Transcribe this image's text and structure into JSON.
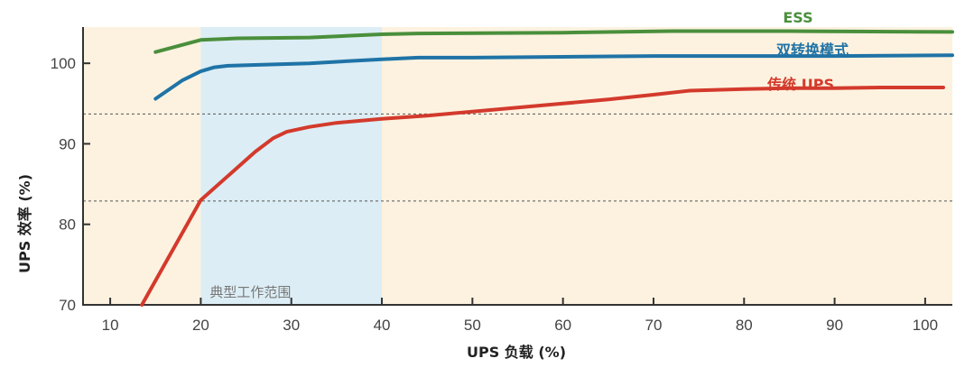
{
  "chart_data": {
    "type": "line",
    "xlabel": "UPS 负载 (%)",
    "ylabel": "UPS 效率 (%)",
    "xlim": [
      7,
      103
    ],
    "ylim": [
      70,
      104.5
    ],
    "xticks": [
      10,
      20,
      30,
      40,
      50,
      60,
      70,
      80,
      90,
      100
    ],
    "yticks": [
      70,
      80,
      90,
      100
    ],
    "dashed_gridlines_y": [
      93.7,
      82.9
    ],
    "regions": [
      {
        "from": 7,
        "to": 20,
        "color": "#fdf2e0"
      },
      {
        "from": 20,
        "to": 40,
        "color": "#dcedf5",
        "label": "典型工作范围"
      },
      {
        "from": 40,
        "to": 103,
        "color": "#fdf2e0"
      }
    ],
    "series": [
      {
        "name": "ESS",
        "color": "#4a8f3c",
        "x": [
          15,
          20,
          24,
          32,
          40,
          44,
          60,
          72,
          85,
          103
        ],
        "y": [
          101.4,
          102.9,
          103.1,
          103.2,
          103.6,
          103.7,
          103.8,
          104.0,
          104.0,
          103.9
        ]
      },
      {
        "name": "双转换模式",
        "color": "#1f73a6",
        "x": [
          15,
          18,
          20,
          21.5,
          23,
          26,
          32,
          40,
          44,
          50,
          60,
          70,
          80,
          90,
          103
        ],
        "y": [
          95.6,
          97.9,
          99.0,
          99.5,
          99.7,
          99.8,
          100.0,
          100.5,
          100.7,
          100.7,
          100.8,
          100.9,
          100.9,
          100.9,
          101.0
        ]
      },
      {
        "name": "传统 UPS",
        "color": "#d33a2c",
        "x": [
          13.5,
          16.5,
          20,
          24,
          26,
          28,
          29.5,
          32,
          35,
          40,
          45,
          50,
          55,
          60,
          65,
          70,
          74,
          80,
          85,
          90,
          95,
          100,
          102
        ],
        "y": [
          70.0,
          76.0,
          83.0,
          87.0,
          89.0,
          90.7,
          91.5,
          92.1,
          92.6,
          93.1,
          93.5,
          94.0,
          94.5,
          95.0,
          95.5,
          96.1,
          96.6,
          96.8,
          96.9,
          96.9,
          97.0,
          97.0,
          97.0
        ]
      }
    ]
  }
}
